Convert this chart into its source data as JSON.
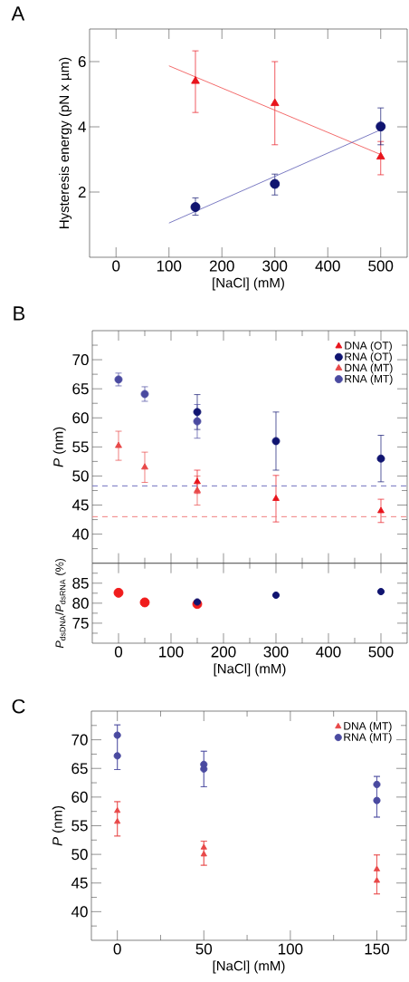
{
  "chart_data": [
    {
      "type": "scatter",
      "title": "A",
      "xlabel": "[NaCl] (mM)",
      "ylabel": "Hysteresis energy (pN x µm)",
      "xlim": [
        -50,
        550
      ],
      "ylim": [
        0,
        7
      ],
      "xticks": [
        0,
        100,
        200,
        300,
        400,
        500
      ],
      "yticks": [
        2,
        4,
        6
      ],
      "series": [
        {
          "color": "#e8141c",
          "marker": "triangle",
          "x": [
            150,
            300,
            500
          ],
          "values": [
            5.4,
            4.72,
            3.08
          ],
          "errors": [
            [
              4.44,
              6.33
            ],
            [
              3.45,
              6.0
            ],
            [
              2.53,
              3.55
            ]
          ]
        },
        {
          "color": "#101470",
          "marker": "circle",
          "x": [
            150,
            300,
            500
          ],
          "values": [
            1.54,
            2.25,
            4.01
          ],
          "errors": [
            [
              1.29,
              1.82
            ],
            [
              1.91,
              2.55
            ],
            [
              3.45,
              4.58
            ]
          ]
        },
        {
          "type": "line",
          "color": "#f04848",
          "x": [
            100,
            500
          ],
          "values": [
            5.87,
            3.15
          ]
        },
        {
          "type": "line",
          "color": "#5a5ab4",
          "x": [
            100,
            500
          ],
          "values": [
            1.05,
            3.91
          ]
        }
      ]
    },
    {
      "type": "scatter",
      "title": "B",
      "ylabel": "*P* (nm)",
      "xlim": [
        -50,
        550
      ],
      "ylim": [
        35,
        75
      ],
      "tick_labels": "y",
      "legend": "top right",
      "xticks": [
        0,
        {
          "value": 50,
          "label": null
        },
        100,
        {
          "value": 150,
          "label": null
        },
        200,
        {
          "value": 250,
          "label": null
        },
        300,
        {
          "value": 350,
          "label": null
        },
        400,
        {
          "value": 450,
          "label": null
        },
        500
      ],
      "yticks": [
        {
          "value": 37.5,
          "label": null
        },
        40,
        {
          "value": 42.5,
          "label": null
        },
        45,
        {
          "value": 47.5,
          "label": null
        },
        50,
        {
          "value": 52.5,
          "label": null
        },
        55,
        {
          "value": 57.5,
          "label": null
        },
        60,
        {
          "value": 62.5,
          "label": null
        },
        65,
        {
          "value": 67.5,
          "label": null
        },
        70,
        {
          "value": 72.5,
          "label": null
        }
      ],
      "ref_lines": [
        {
          "axis": "y",
          "value": 48.3,
          "color": "#7070c0",
          "line_style": "dashed"
        },
        {
          "axis": "y",
          "value": 43.0,
          "color": "#f08080",
          "line_style": "dashed"
        }
      ],
      "series": [
        {
          "name": "DNA (OT)",
          "color": "#e8141c",
          "marker": "triangle",
          "x": [
            150,
            300,
            500
          ],
          "values": [
            49,
            46.1,
            44
          ],
          "errors": [
            2,
            4,
            2
          ]
        },
        {
          "name": "RNA (OT)",
          "color": "#101470",
          "marker": "circle",
          "x": [
            150,
            300,
            500
          ],
          "values": [
            61,
            56,
            53
          ],
          "errors": [
            3,
            5,
            4
          ]
        },
        {
          "name": "DNA (MT)",
          "color": "#e84848",
          "marker": "triangle",
          "x": [
            0,
            50,
            150
          ],
          "values": [
            55.2,
            51.5,
            47.5
          ],
          "errors": [
            2.5,
            2.6,
            2.5
          ]
        },
        {
          "name": "RNA (MT)",
          "color": "#4a4aa0",
          "marker": "circle",
          "x": [
            0,
            50,
            150
          ],
          "values": [
            66.6,
            64.1,
            59.4
          ],
          "errors": [
            1.1,
            1.25,
            2.9
          ]
        }
      ]
    },
    {
      "type": "scatter",
      "xlabel": "[NaCl] (mM)",
      "ylabel": "*P*$_{dsDNA}$/*P*$_{dsRNA}$ (%)",
      "xlim": [
        -50,
        550
      ],
      "ylim": [
        70,
        90
      ],
      "xticks": [
        0,
        {
          "value": 50,
          "label": null
        },
        100,
        {
          "value": 150,
          "label": null
        },
        200,
        {
          "value": 250,
          "label": null
        },
        300,
        {
          "value": 350,
          "label": null
        },
        400,
        {
          "value": 450,
          "label": null
        },
        500
      ],
      "yticks": [
        {
          "value": 72.5,
          "label": null
        },
        75,
        {
          "value": 77.5,
          "label": null
        },
        80,
        {
          "value": 82.5,
          "label": null
        },
        85,
        {
          "value": 87.5,
          "label": null
        }
      ],
      "series": [
        {
          "color": "#f01c1c",
          "marker": "circle",
          "x": [
            0,
            50,
            150
          ],
          "values": [
            82.6,
            80.2,
            79.8
          ]
        },
        {
          "color": "#101470",
          "marker": "circle",
          "x": [
            150,
            300,
            500
          ],
          "values": [
            80.3,
            82.0,
            82.9
          ]
        }
      ]
    },
    {
      "type": "scatter",
      "title": "C",
      "xlabel": "[NaCl] (mM)",
      "ylabel": "*P* (nm)",
      "xlim": [
        -15,
        167
      ],
      "ylim": [
        35,
        75
      ],
      "legend": "top right",
      "xticks": [
        0,
        {
          "value": 25,
          "label": null
        },
        50,
        {
          "value": 75,
          "label": null
        },
        100,
        {
          "value": 125,
          "label": null
        },
        150
      ],
      "yticks": [
        {
          "value": 37.5,
          "label": null
        },
        40,
        {
          "value": 42.5,
          "label": null
        },
        45,
        {
          "value": 47.5,
          "label": null
        },
        50,
        {
          "value": 52.5,
          "label": null
        },
        55,
        {
          "value": 57.5,
          "label": null
        },
        60,
        {
          "value": 62.5,
          "label": null
        },
        65,
        {
          "value": 67.5,
          "label": null
        },
        70,
        {
          "value": 72.5,
          "label": null
        }
      ],
      "series": [
        {
          "name": "DNA (MT)",
          "color": "#e84848",
          "marker": "triangle",
          "x": [
            0,
            0,
            50,
            50,
            150,
            150
          ],
          "values": [
            57.6,
            55.7,
            51.2,
            50.0,
            47.4,
            45.4
          ],
          "errors": [
            [
              53.2,
              59.2
            ],
            [
              53.2,
              59.2
            ],
            [
              48.1,
              52.3
            ],
            [
              48.1,
              52.3
            ],
            [
              43.1,
              49.9
            ],
            [
              43.1,
              49.9
            ]
          ]
        },
        {
          "name": "RNA (MT)",
          "color": "#4a4aa0",
          "marker": "circle",
          "x": [
            0,
            0,
            50,
            50,
            150,
            150
          ],
          "values": [
            70.8,
            67.2,
            65.7,
            64.9,
            62.2,
            59.4
          ],
          "errors": [
            [
              64.8,
              72.6
            ],
            [
              64.8,
              72.6
            ],
            [
              61.8,
              68.0
            ],
            [
              61.8,
              68.0
            ],
            [
              56.5,
              63.6
            ],
            [
              56.5,
              63.6
            ]
          ]
        }
      ]
    }
  ]
}
